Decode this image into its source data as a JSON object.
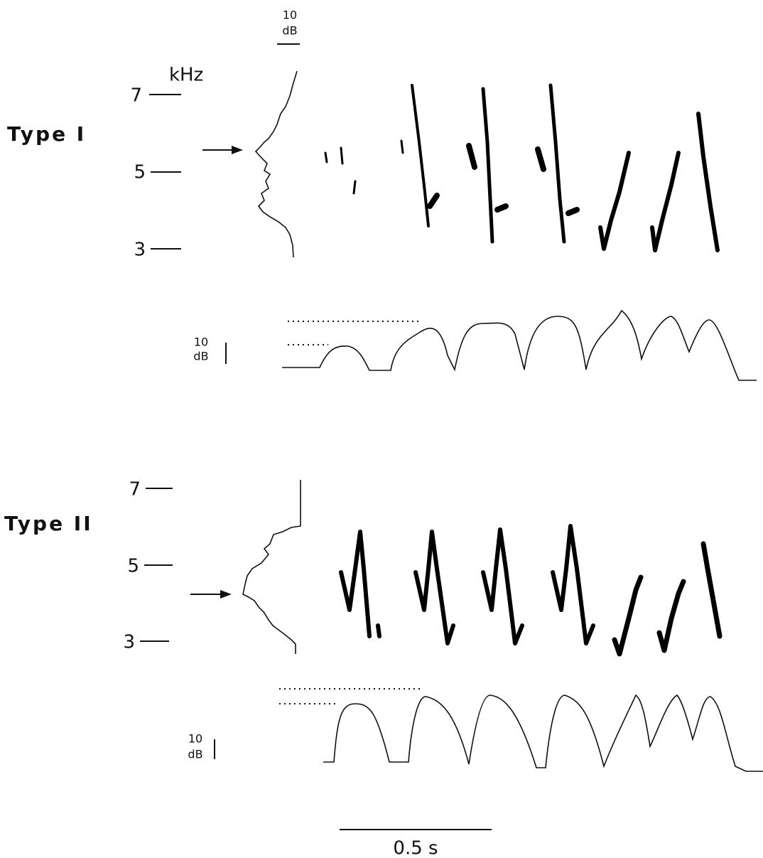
{
  "panels": [
    {
      "label": "Type I",
      "spectrum_scale": {
        "value": "10",
        "unit": "dB"
      },
      "freq_unit": "kHz",
      "freq_ticks": [
        7,
        5,
        3
      ],
      "amp_scale": {
        "value": "10",
        "unit": "dB"
      }
    },
    {
      "label": "Type II",
      "freq_ticks": [
        7,
        5,
        3
      ],
      "amp_scale": {
        "value": "10",
        "unit": "dB"
      }
    }
  ],
  "time_scale": "0.5 s"
}
